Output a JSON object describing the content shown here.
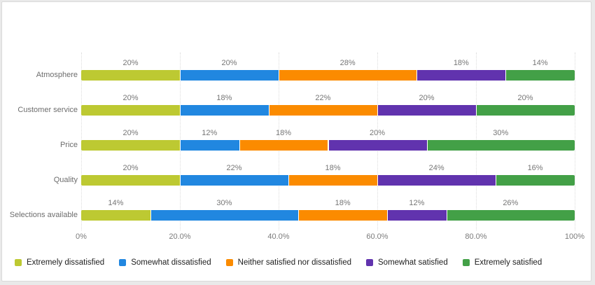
{
  "chart_data": {
    "type": "bar",
    "orientation": "horizontal",
    "stacked": true,
    "title": "",
    "categories": [
      "Atmosphere",
      "Customer service",
      "Price",
      "Quality",
      "Selections available"
    ],
    "series": [
      {
        "name": "Extremely dissatisfied",
        "color": "#bdc932",
        "values": [
          20,
          20,
          20,
          20,
          14
        ]
      },
      {
        "name": "Somewhat dissatisfied",
        "color": "#2187e0",
        "values": [
          20,
          18,
          12,
          22,
          30
        ]
      },
      {
        "name": "Neither satisfied nor dissatisfied",
        "color": "#fb8b00",
        "values": [
          28,
          22,
          18,
          18,
          18
        ]
      },
      {
        "name": "Somewhat satisfied",
        "color": "#6133ae",
        "values": [
          18,
          20,
          20,
          24,
          12
        ]
      },
      {
        "name": "Extremely satisfied",
        "color": "#43a047",
        "values": [
          14,
          20,
          30,
          16,
          26
        ]
      }
    ],
    "x_ticks": [
      "0%",
      "20.0%",
      "40.0%",
      "60.0%",
      "80.0%",
      "100%"
    ],
    "xlim": [
      0,
      100
    ],
    "grid": "vertical-dotted",
    "data_label_suffix": "%",
    "legend_position": "bottom-left",
    "legend": [
      "Extremely dissatisfied",
      "Somewhat dissatisfied",
      "Neither satisfied nor dissatisfied",
      "Somewhat satisfied",
      "Extremely satisfied"
    ]
  }
}
